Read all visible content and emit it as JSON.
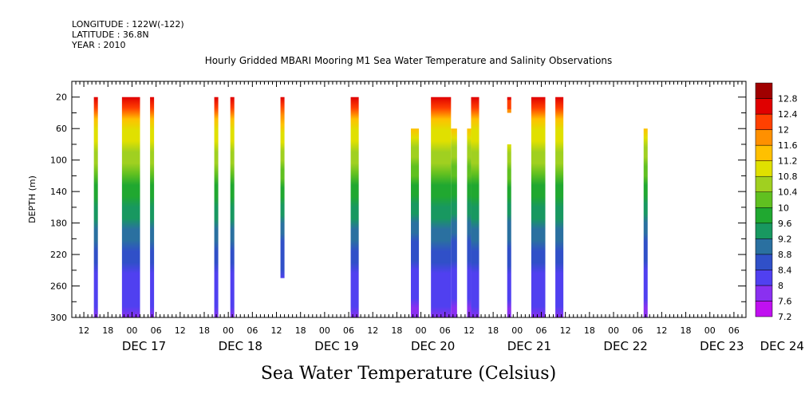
{
  "header": {
    "longitude": "LONGITUDE : 122W(-122)",
    "latitude": "LATITUDE : 36.8N",
    "year": "YEAR : 2010"
  },
  "chart_data": {
    "type": "heatmap",
    "title": "Hourly Gridded MBARI Mooring M1 Sea Water Temperature and Salinity Observations",
    "xlabel": "",
    "ylabel": "DEPTH (m)",
    "caption": "Sea Water Temperature (Celsius)",
    "x_start_hour": 9,
    "x_end_hour": 177,
    "x_tick_labels": [
      "12",
      "18",
      "00",
      "06",
      "12",
      "18",
      "00",
      "06",
      "12",
      "18",
      "00",
      "06",
      "12",
      "18",
      "00",
      "06",
      "12",
      "18",
      "00",
      "06",
      "12",
      "18",
      "00",
      "06",
      "12",
      "18",
      "00",
      "06"
    ],
    "day_labels": [
      {
        "hour": 27,
        "label": "DEC 17"
      },
      {
        "hour": 51,
        "label": "DEC 18"
      },
      {
        "hour": 75,
        "label": "DEC 19"
      },
      {
        "hour": 99,
        "label": "DEC 20"
      },
      {
        "hour": 123,
        "label": "DEC 21"
      },
      {
        "hour": 147,
        "label": "DEC 22"
      },
      {
        "hour": 171,
        "label": "DEC 23"
      },
      {
        "hour": 186,
        "label": "DEC 24"
      }
    ],
    "y_ticks": [
      20,
      60,
      100,
      140,
      180,
      220,
      260,
      300
    ],
    "ylim": [
      300,
      0
    ],
    "color_scale": {
      "levels": [
        7.2,
        7.6,
        8,
        8.4,
        8.8,
        9.2,
        9.6,
        10,
        10.4,
        10.8,
        11.2,
        11.6,
        12,
        12.4,
        12.8
      ],
      "colors": [
        "#c010f0",
        "#8a30f0",
        "#5040f0",
        "#3050c8",
        "#2a70a0",
        "#189860",
        "#20a830",
        "#60c020",
        "#a0d020",
        "#e0e000",
        "#ffc000",
        "#ff9000",
        "#ff4000",
        "#e00000",
        "#a00000"
      ]
    },
    "temperature_profile_sampled_depths": [
      20,
      60,
      100,
      140,
      180,
      220,
      260,
      300
    ],
    "temperature_profile_values": [
      12.5,
      11.2,
      10.5,
      9.8,
      9.1,
      8.6,
      8.2,
      7.9
    ],
    "series": [
      {
        "x_start": 14.5,
        "x_end": 15.5,
        "depth_top": 20,
        "depth_bottom": 300
      },
      {
        "x_start": 21.5,
        "x_end": 26,
        "depth_top": 20,
        "depth_bottom": 300
      },
      {
        "x_start": 28.5,
        "x_end": 29.5,
        "depth_top": 20,
        "depth_bottom": 300
      },
      {
        "x_start": 44.5,
        "x_end": 45.5,
        "depth_top": 20,
        "depth_bottom": 300
      },
      {
        "x_start": 48.5,
        "x_end": 49.5,
        "depth_top": 20,
        "depth_bottom": 300
      },
      {
        "x_start": 61,
        "x_end": 62,
        "depth_top": 20,
        "depth_bottom": 250
      },
      {
        "x_start": 78.5,
        "x_end": 80.5,
        "depth_top": 20,
        "depth_bottom": 300
      },
      {
        "x_start": 93.5,
        "x_end": 95.5,
        "depth_top": 60,
        "depth_bottom": 300
      },
      {
        "x_start": 98.5,
        "x_end": 103.5,
        "depth_top": 20,
        "depth_bottom": 300
      },
      {
        "x_start": 103.5,
        "x_end": 105,
        "depth_top": 60,
        "depth_bottom": 300
      },
      {
        "x_start": 107.5,
        "x_end": 108.5,
        "depth_top": 60,
        "depth_bottom": 300
      },
      {
        "x_start": 108.5,
        "x_end": 110.5,
        "depth_top": 20,
        "depth_bottom": 300
      },
      {
        "x_start": 117.5,
        "x_end": 118.5,
        "depth_top": 20,
        "depth_bottom": 40
      },
      {
        "x_start": 117.5,
        "x_end": 118.5,
        "depth_top": 80,
        "depth_bottom": 300
      },
      {
        "x_start": 123.5,
        "x_end": 127,
        "depth_top": 20,
        "depth_bottom": 300
      },
      {
        "x_start": 129.5,
        "x_end": 131.5,
        "depth_top": 20,
        "depth_bottom": 300
      },
      {
        "x_start": 151.5,
        "x_end": 152.5,
        "depth_top": 60,
        "depth_bottom": 300
      }
    ],
    "grid": false,
    "legend": "right"
  }
}
